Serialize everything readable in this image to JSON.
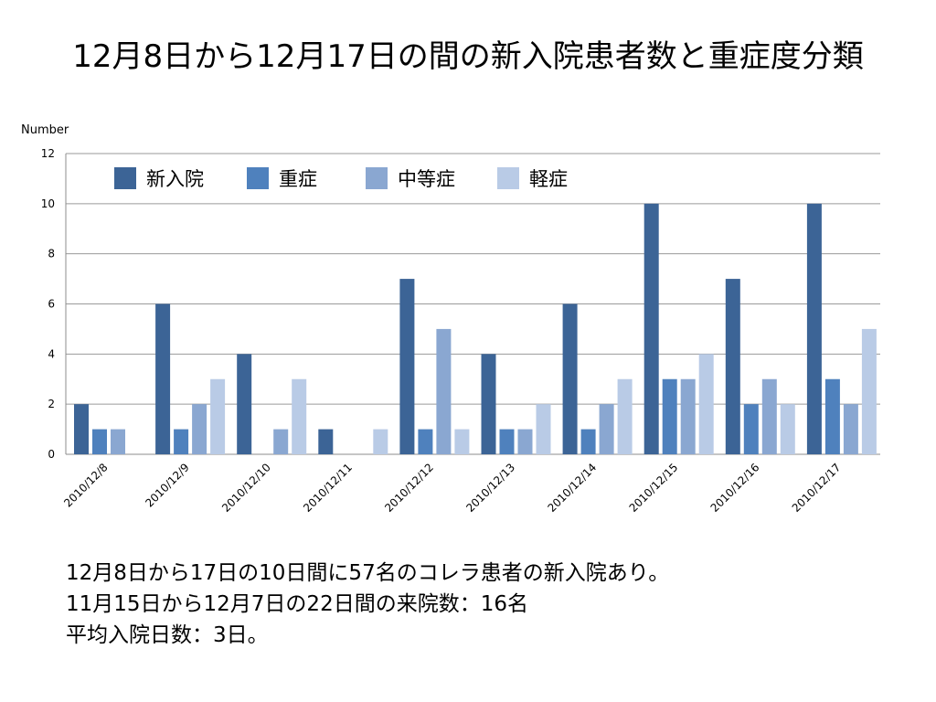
{
  "title": "12月8日から12月17日の間の新入院患者数と重症度分類",
  "chart_data": {
    "type": "bar",
    "title": "",
    "ylabel": "Number",
    "xlabel": "",
    "ylim": [
      0,
      12
    ],
    "yticks": [
      0,
      2,
      4,
      6,
      8,
      10,
      12
    ],
    "grid": true,
    "legend_position": "top",
    "categories": [
      "2010/12/8",
      "2010/12/9",
      "2010/12/10",
      "2010/12/11",
      "2010/12/12",
      "2010/12/13",
      "2010/12/14",
      "2010/12/15",
      "2010/12/16",
      "2010/12/17"
    ],
    "series": [
      {
        "name": "新入院",
        "color": "#3c6496",
        "values": [
          2,
          6,
          4,
          1,
          7,
          4,
          6,
          10,
          7,
          10
        ]
      },
      {
        "name": "重症",
        "color": "#4f81bd",
        "values": [
          1,
          1,
          0,
          0,
          1,
          1,
          1,
          3,
          2,
          3
        ]
      },
      {
        "name": "中等症",
        "color": "#8aa7d1",
        "values": [
          1,
          2,
          1,
          0,
          5,
          1,
          2,
          3,
          3,
          2
        ]
      },
      {
        "name": "軽症",
        "color": "#b9cbe6",
        "values": [
          0,
          3,
          3,
          1,
          1,
          2,
          3,
          4,
          2,
          5
        ]
      }
    ]
  },
  "notes": [
    "12月8日から17日の10日間に57名のコレラ患者の新入院あり。",
    "11月15日から12月7日の22日間の来院数：16名",
    "平均入院日数：3日。"
  ]
}
